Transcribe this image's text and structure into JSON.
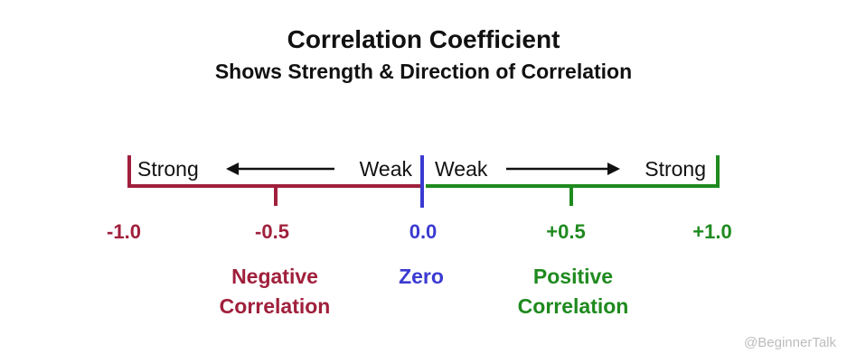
{
  "header": {
    "title": "Correlation Coefficient",
    "subtitle": "Shows Strength & Direction of Correlation"
  },
  "scale": {
    "ticks": [
      {
        "value": -1.0,
        "label": "-1.0",
        "color": "#a0203c"
      },
      {
        "value": -0.5,
        "label": "-0.5",
        "color": "#a0203c"
      },
      {
        "value": 0.0,
        "label": "0.0",
        "color": "#3a3ad2"
      },
      {
        "value": 0.5,
        "label": "+0.5",
        "color": "#1e8a1e"
      },
      {
        "value": 1.0,
        "label": "+1.0",
        "color": "#1e8a1e"
      }
    ]
  },
  "arrows": {
    "negative": {
      "left_label": "Strong",
      "right_label": "Weak"
    },
    "positive": {
      "left_label": "Weak",
      "right_label": "Strong"
    }
  },
  "regions": {
    "negative": {
      "line1": "Negative",
      "line2": "Correlation",
      "color": "#a0203c"
    },
    "zero": {
      "line1": "Zero",
      "color": "#3a3ad2"
    },
    "positive": {
      "line1": "Positive",
      "line2": "Correlation",
      "color": "#1e8a1e"
    }
  },
  "colors": {
    "negative": "#a0203c",
    "zero": "#3a3ad2",
    "positive": "#1e8a1e",
    "text": "#111111"
  },
  "watermark": "@BeginnerTalk"
}
